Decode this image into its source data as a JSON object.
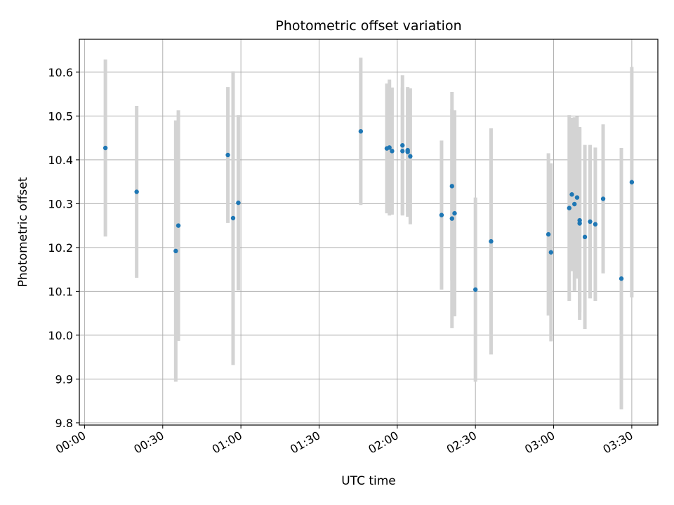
{
  "chart_data": {
    "type": "scatter",
    "title": "Photometric offset variation",
    "xlabel": "UTC time",
    "ylabel": "Photometric offset",
    "x_tick_labels": [
      "00:00",
      "00:30",
      "01:00",
      "01:30",
      "02:00",
      "02:30",
      "03:00",
      "03:30"
    ],
    "y_tick_labels": [
      "9.8",
      "9.9",
      "10.0",
      "10.1",
      "10.2",
      "10.3",
      "10.4",
      "10.5",
      "10.6"
    ],
    "x_ticks": [
      "00:00",
      "00:30",
      "01:00",
      "01:30",
      "02:00",
      "02:30",
      "03:00",
      "03:30"
    ],
    "y_ticks": [
      9.8,
      9.9,
      10.0,
      10.1,
      10.2,
      10.3,
      10.4,
      10.5,
      10.6
    ],
    "xlim": [
      "-00:02",
      "03:40"
    ],
    "ylim": [
      9.795,
      10.675
    ],
    "grid": true,
    "colors": {
      "point": "#1f77b4",
      "errorbar": "#d3d3d3",
      "grid": "#b0b0b0"
    },
    "points": [
      {
        "t": "00:08",
        "y": 10.427,
        "err": 0.202
      },
      {
        "t": "00:20",
        "y": 10.327,
        "err": 0.196
      },
      {
        "t": "00:35",
        "y": 10.192,
        "err": 0.298
      },
      {
        "t": "00:36",
        "y": 10.25,
        "err": 0.263
      },
      {
        "t": "00:55",
        "y": 10.411,
        "err": 0.155
      },
      {
        "t": "00:57",
        "y": 10.267,
        "err": 0.335
      },
      {
        "t": "00:59",
        "y": 10.302,
        "err": 0.2
      },
      {
        "t": "01:46",
        "y": 10.465,
        "err": 0.168
      },
      {
        "t": "01:56",
        "y": 10.426,
        "err": 0.148
      },
      {
        "t": "01:57",
        "y": 10.428,
        "err": 0.155
      },
      {
        "t": "01:58",
        "y": 10.42,
        "err": 0.145
      },
      {
        "t": "02:02",
        "y": 10.42,
        "err": 0.145
      },
      {
        "t": "02:02",
        "y": 10.433,
        "err": 0.16
      },
      {
        "t": "02:04",
        "y": 10.418,
        "err": 0.148
      },
      {
        "t": "02:04",
        "y": 10.422,
        "err": 0.14
      },
      {
        "t": "02:05",
        "y": 10.408,
        "err": 0.155
      },
      {
        "t": "02:17",
        "y": 10.274,
        "err": 0.17
      },
      {
        "t": "02:21",
        "y": 10.34,
        "err": 0.215
      },
      {
        "t": "02:21",
        "y": 10.266,
        "err": 0.25
      },
      {
        "t": "02:22",
        "y": 10.278,
        "err": 0.235
      },
      {
        "t": "02:30",
        "y": 10.104,
        "err": 0.21
      },
      {
        "t": "02:36",
        "y": 10.214,
        "err": 0.258
      },
      {
        "t": "02:58",
        "y": 10.23,
        "err": 0.185
      },
      {
        "t": "02:59",
        "y": 10.189,
        "err": 0.203
      },
      {
        "t": "03:06",
        "y": 10.29,
        "err": 0.212
      },
      {
        "t": "03:07",
        "y": 10.321,
        "err": 0.175
      },
      {
        "t": "03:08",
        "y": 10.299,
        "err": 0.198
      },
      {
        "t": "03:09",
        "y": 10.314,
        "err": 0.185
      },
      {
        "t": "03:10",
        "y": 10.262,
        "err": 0.21
      },
      {
        "t": "03:10",
        "y": 10.255,
        "err": 0.22
      },
      {
        "t": "03:12",
        "y": 10.224,
        "err": 0.21
      },
      {
        "t": "03:14",
        "y": 10.259,
        "err": 0.175
      },
      {
        "t": "03:16",
        "y": 10.253,
        "err": 0.175
      },
      {
        "t": "03:19",
        "y": 10.311,
        "err": 0.17
      },
      {
        "t": "03:26",
        "y": 10.129,
        "err": 0.298
      },
      {
        "t": "03:30",
        "y": 10.349,
        "err": 0.263
      }
    ]
  }
}
